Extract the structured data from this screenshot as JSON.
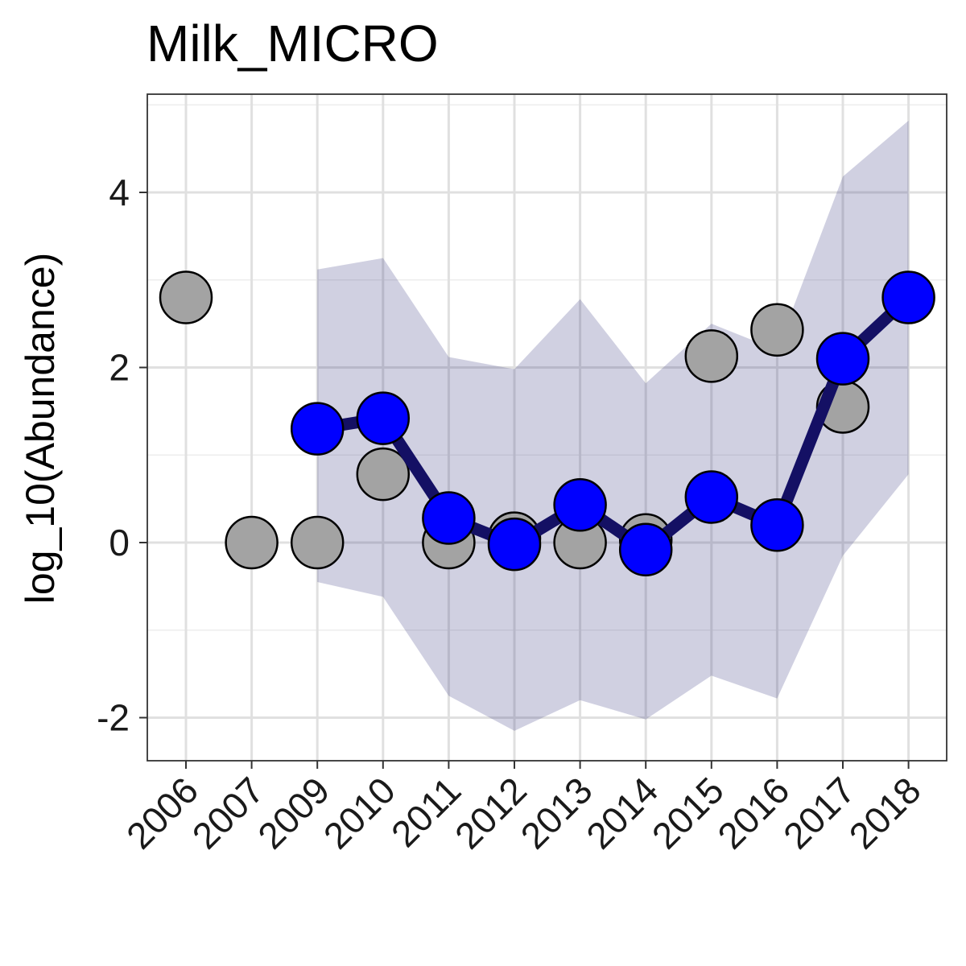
{
  "chart_data": {
    "type": "line",
    "title": "Milk_MICRO",
    "xlabel": "",
    "ylabel": "log_10(Abundance)",
    "categories": [
      "2006",
      "2007",
      "2009",
      "2010",
      "2011",
      "2012",
      "2013",
      "2014",
      "2015",
      "2016",
      "2017",
      "2018"
    ],
    "ylim": [
      -2.5,
      5.1
    ],
    "y_ticks": [
      -2,
      0,
      2,
      4
    ],
    "y_tick_labels": [
      "-2",
      "0",
      "2",
      "4"
    ],
    "grid": true,
    "legend": "none",
    "series": [
      {
        "kind": "observed-points",
        "values": [
          2.8,
          0.0,
          0.0,
          0.78,
          0.0,
          0.05,
          0.0,
          0.03,
          2.13,
          2.43,
          1.55,
          null
        ]
      },
      {
        "kind": "fitted-line",
        "values": [
          null,
          null,
          1.3,
          1.42,
          0.28,
          -0.02,
          0.43,
          -0.08,
          0.52,
          0.2,
          2.1,
          2.8
        ]
      },
      {
        "kind": "confidence-band",
        "lower": [
          null,
          null,
          -0.45,
          -0.62,
          -1.75,
          -2.15,
          -1.8,
          -2.02,
          -1.52,
          -1.78,
          -0.15,
          0.78
        ],
        "upper": [
          null,
          null,
          3.12,
          3.25,
          2.12,
          1.98,
          2.78,
          1.82,
          2.5,
          2.2,
          4.18,
          4.82
        ]
      }
    ],
    "colors": {
      "band": "#2a2a78",
      "line": "#141064",
      "fit_points": "#0000ff",
      "observed_points": "#a3a3a3",
      "point_outline": "#000000"
    }
  }
}
